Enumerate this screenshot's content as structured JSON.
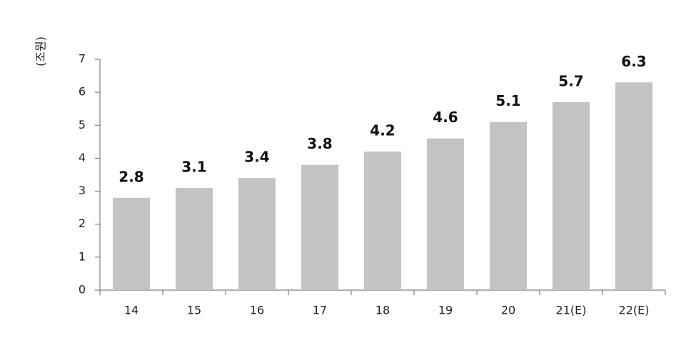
{
  "chart_data": {
    "type": "bar",
    "y_axis_label": "(조원)",
    "categories": [
      "14",
      "15",
      "16",
      "17",
      "18",
      "19",
      "20",
      "21(E)",
      "22(E)"
    ],
    "values": [
      2.8,
      3.1,
      3.4,
      3.8,
      4.2,
      4.6,
      5.1,
      5.7,
      6.3
    ],
    "color": "#c3c3c3",
    "ylim": [
      0,
      7
    ],
    "yticks": [
      0,
      1,
      2,
      3,
      4,
      5,
      6,
      7
    ],
    "grid": false
  }
}
